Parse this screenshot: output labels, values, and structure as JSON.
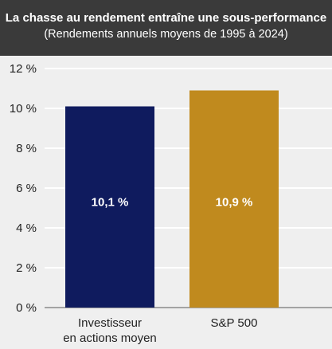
{
  "chart_data": {
    "type": "bar",
    "title": "La chasse au rendement entraîne une sous-performance",
    "subtitle": "(Rendements annuels moyens de 1995 à 2024)",
    "categories": [
      [
        "Investisseur",
        "en actions moyen"
      ],
      [
        "S&P 500"
      ]
    ],
    "values": [
      10.1,
      10.9
    ],
    "data_labels": [
      "10,1 %",
      "10,9 %"
    ],
    "colors": [
      "#0f1b5e",
      "#c08a1e"
    ],
    "ylim": [
      0,
      12
    ],
    "yticks": [
      0,
      2,
      4,
      6,
      8,
      10,
      12
    ],
    "ytick_labels": [
      "0 %",
      "2 %",
      "4 %",
      "6 %",
      "8 %",
      "10 %",
      "12 %"
    ],
    "grid": true,
    "legend": "none"
  }
}
